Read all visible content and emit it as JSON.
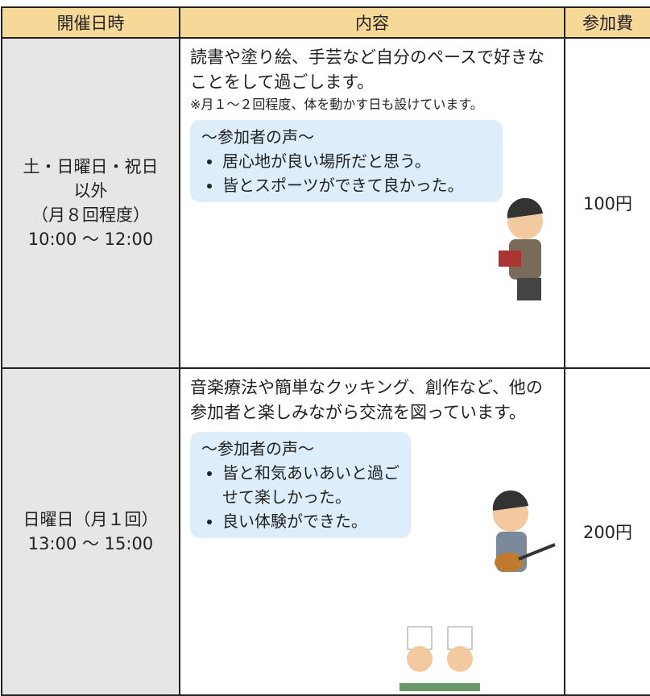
{
  "table": {
    "header": [
      "開催日時",
      "内容",
      "参加費"
    ],
    "rows": [
      {
        "date": [
          "土・日曜日・祝日",
          "以外",
          "（月８回程度）",
          "10:00 ～ 12:00"
        ],
        "description": "読書や塗り絵、手芸など自分のペースで好きなことをして過ごします。",
        "note": "※月１～２回程度、体を動かす日も設けています。",
        "voices_title": "～参加者の声～",
        "voices": [
          "居心地が良い場所だと思う。",
          "皆とスポーツができて良かった。"
        ],
        "fee": "100円"
      },
      {
        "date": [
          "日曜日（月１回）",
          "13:00 ～ 15:00"
        ],
        "description": "音楽療法や簡単なクッキング、創作など、他の参加者と楽しみながら交流を図っています。",
        "voices_title": "～参加者の声～",
        "voices": [
          "皆と和気あいあいと過ごせて楽しかった。",
          "良い体験ができた。"
        ],
        "fee": "200円"
      }
    ]
  }
}
